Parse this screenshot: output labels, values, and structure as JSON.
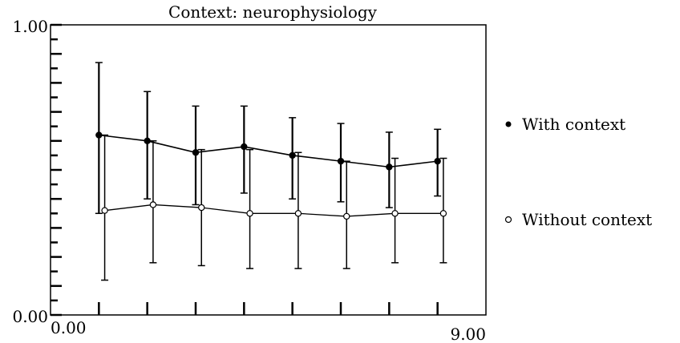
{
  "chart_data": {
    "type": "line",
    "title": "Context: neurophysiology",
    "xlabel": "",
    "ylabel": "",
    "xlim": [
      0,
      9
    ],
    "ylim": [
      0,
      1
    ],
    "x_tick_labels": [
      "0.00",
      "9.00"
    ],
    "y_tick_labels": [
      "0.00",
      "1.00"
    ],
    "grid": false,
    "legend_position": "right",
    "series": [
      {
        "name": "With context",
        "marker": "filled-circle",
        "x": [
          1,
          2,
          3,
          4,
          5,
          6,
          7,
          8
        ],
        "y": [
          0.62,
          0.6,
          0.56,
          0.58,
          0.55,
          0.53,
          0.51,
          0.53
        ],
        "err_low": [
          0.35,
          0.4,
          0.38,
          0.42,
          0.4,
          0.39,
          0.37,
          0.41
        ],
        "err_high": [
          0.87,
          0.77,
          0.72,
          0.72,
          0.68,
          0.66,
          0.63,
          0.64
        ]
      },
      {
        "name": "Without context",
        "marker": "open-circle",
        "x": [
          1,
          2,
          3,
          4,
          5,
          6,
          7,
          8
        ],
        "y": [
          0.36,
          0.38,
          0.37,
          0.35,
          0.35,
          0.34,
          0.35,
          0.35
        ],
        "err_low": [
          0.12,
          0.18,
          0.17,
          0.16,
          0.16,
          0.16,
          0.18,
          0.18
        ],
        "err_high": [
          0.62,
          0.6,
          0.57,
          0.57,
          0.56,
          0.53,
          0.54,
          0.54
        ]
      }
    ]
  }
}
